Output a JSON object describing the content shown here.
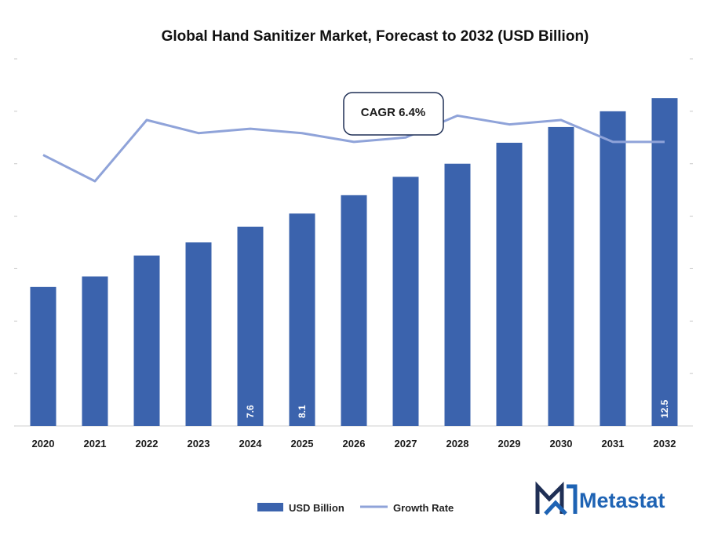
{
  "chart_data": {
    "type": "bar",
    "title": "Global Hand Sanitizer Market, Forecast to 2032 (USD Billion)",
    "categories": [
      "2020",
      "2021",
      "2022",
      "2023",
      "2024",
      "2025",
      "2026",
      "2027",
      "2028",
      "2029",
      "2030",
      "2031",
      "2032"
    ],
    "series": [
      {
        "name": "USD Billion",
        "type": "bar",
        "color": "#3b63ad",
        "values": [
          5.3,
          5.7,
          6.5,
          7.0,
          7.6,
          8.1,
          8.8,
          9.5,
          10.0,
          10.8,
          11.4,
          12.0,
          12.5
        ],
        "labels": [
          "",
          "",
          "",
          "",
          "7.6",
          "8.1",
          "",
          "",
          "",
          "",
          "",
          "",
          "12.5"
        ]
      },
      {
        "name": "Growth Rate",
        "type": "line",
        "color": "#8fa3d9",
        "values": [
          6.2,
          5.6,
          7.0,
          6.7,
          6.8,
          6.7,
          6.5,
          6.6,
          7.1,
          6.9,
          7.0,
          6.5,
          6.5
        ]
      }
    ],
    "ylim": [
      0,
      14
    ],
    "y2lim": [
      0,
      8.4
    ],
    "grid": false,
    "legend_position": "bottom-center",
    "annotation": "CAGR 6.4%"
  },
  "brand": {
    "name": "Metastat",
    "color": "#1e63b4",
    "icon": "metastat-m-logo"
  }
}
